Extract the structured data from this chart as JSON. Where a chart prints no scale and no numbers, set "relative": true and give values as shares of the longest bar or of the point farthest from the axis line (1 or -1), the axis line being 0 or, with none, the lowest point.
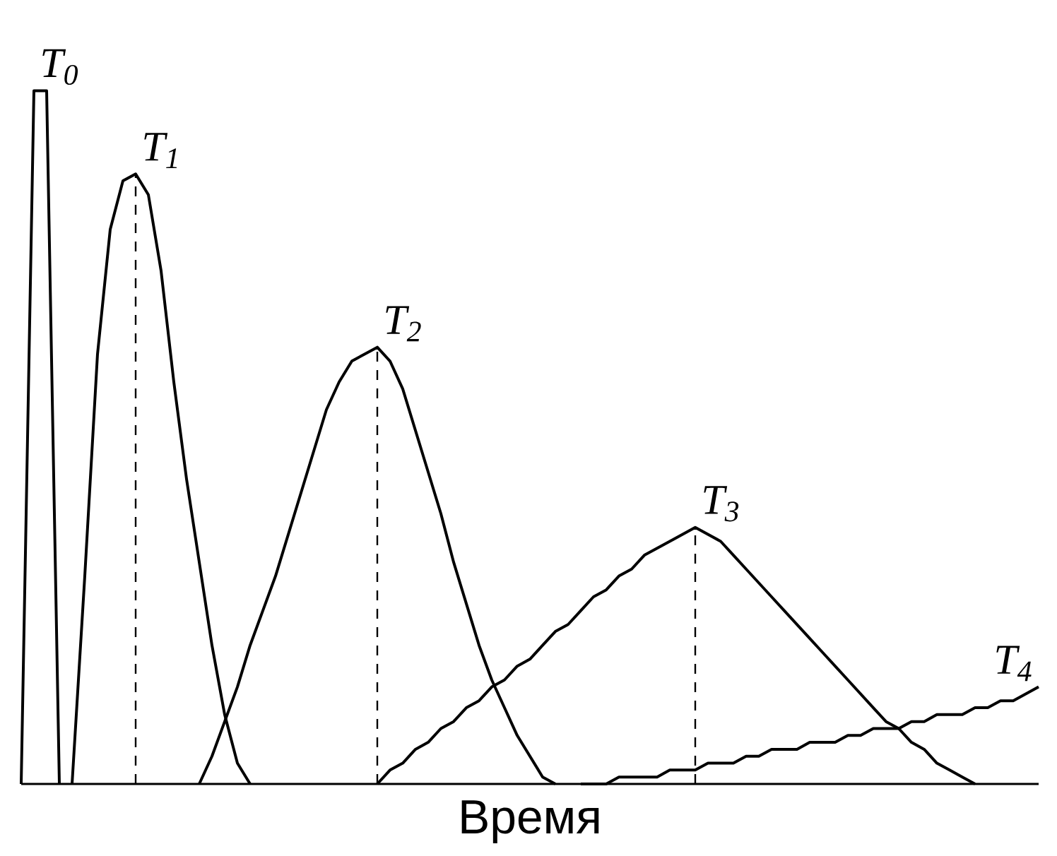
{
  "chart_data": {
    "type": "line",
    "xlabel": "Время",
    "relative": true,
    "tick_labels": false,
    "marker": "none",
    "categories": [
      null,
      null,
      null,
      null,
      null,
      null,
      null,
      null,
      null,
      null,
      null,
      null,
      null,
      null,
      null,
      null,
      null,
      null,
      null,
      null,
      null,
      null,
      null,
      null,
      null,
      null,
      null,
      null,
      null,
      null,
      null,
      null,
      null,
      null,
      null,
      null,
      null,
      null,
      null,
      null,
      null,
      null,
      null,
      null,
      null,
      null,
      null,
      null,
      null,
      null,
      null,
      null,
      null,
      null,
      null,
      null,
      null,
      null,
      null,
      null,
      null,
      null,
      null,
      null,
      null,
      null,
      null,
      null,
      null,
      null,
      null,
      null,
      null,
      null,
      null,
      null,
      null,
      null,
      null,
      null,
      null
    ],
    "series": [
      {
        "name": "T$_{0}$",
        "color": "#000000",
        "values": [
          0,
          1,
          1,
          0,
          null,
          null,
          null,
          null,
          null,
          null,
          null,
          null,
          null,
          null,
          null,
          null,
          null,
          null,
          null,
          null,
          null,
          null,
          null,
          null,
          null,
          null,
          null,
          null,
          null,
          null,
          null,
          null,
          null,
          null,
          null,
          null,
          null,
          null,
          null,
          null,
          null,
          null,
          null,
          null,
          null,
          null,
          null,
          null,
          null,
          null,
          null,
          null,
          null,
          null,
          null,
          null,
          null,
          null,
          null,
          null,
          null,
          null,
          null,
          null,
          null,
          null,
          null,
          null,
          null,
          null,
          null,
          null,
          null,
          null,
          null,
          null,
          null,
          null,
          null,
          null,
          null
        ]
      },
      {
        "name": "T$_{1}$",
        "color": "#000000",
        "values": [
          null,
          null,
          null,
          null,
          0,
          0.3,
          0.62,
          0.8,
          0.87,
          0.88,
          0.85,
          0.74,
          0.58,
          0.44,
          0.32,
          0.2,
          0.1,
          0.03,
          0,
          null,
          null,
          null,
          null,
          null,
          null,
          null,
          null,
          null,
          null,
          null,
          null,
          null,
          null,
          null,
          null,
          null,
          null,
          null,
          null,
          null,
          null,
          null,
          null,
          null,
          null,
          null,
          null,
          null,
          null,
          null,
          null,
          null,
          null,
          null,
          null,
          null,
          null,
          null,
          null,
          null,
          null,
          null,
          null,
          null,
          null,
          null,
          null,
          null,
          null,
          null,
          null,
          null,
          null,
          null,
          null,
          null,
          null,
          null,
          null,
          null,
          null
        ]
      },
      {
        "name": "T$_{2}$",
        "color": "#000000",
        "values": [
          null,
          null,
          null,
          null,
          null,
          null,
          null,
          null,
          null,
          null,
          null,
          null,
          null,
          null,
          0,
          0.04,
          0.09,
          0.14,
          0.2,
          0.25,
          0.3,
          0.36,
          0.42,
          0.48,
          0.54,
          0.58,
          0.61,
          0.62,
          0.63,
          0.61,
          0.57,
          0.51,
          0.45,
          0.39,
          0.32,
          0.26,
          0.2,
          0.15,
          0.11,
          0.07,
          0.04,
          0.01,
          0,
          null,
          null,
          null,
          null,
          null,
          null,
          null,
          null,
          null,
          null,
          null,
          null,
          null,
          null,
          null,
          null,
          null,
          null,
          null,
          null,
          null,
          null,
          null,
          null,
          null,
          null,
          null,
          null,
          null,
          null,
          null,
          null,
          null,
          null,
          null,
          null,
          null,
          null
        ]
      },
      {
        "name": "T$_{3}$",
        "color": "#000000",
        "values": [
          null,
          null,
          null,
          null,
          null,
          null,
          null,
          null,
          null,
          null,
          null,
          null,
          null,
          null,
          null,
          null,
          null,
          null,
          null,
          null,
          null,
          null,
          null,
          null,
          null,
          null,
          null,
          null,
          0,
          0.02,
          0.03,
          0.05,
          0.06,
          0.08,
          0.09,
          0.11,
          0.12,
          0.14,
          0.15,
          0.17,
          0.18,
          0.2,
          0.22,
          0.23,
          0.25,
          0.27,
          0.28,
          0.3,
          0.31,
          0.33,
          0.34,
          0.35,
          0.36,
          0.37,
          0.36,
          0.35,
          0.33,
          0.31,
          0.29,
          0.27,
          0.25,
          0.23,
          0.21,
          0.19,
          0.17,
          0.15,
          0.13,
          0.11,
          0.09,
          0.08,
          0.06,
          0.05,
          0.03,
          0.02,
          0.01,
          0,
          null,
          null,
          null,
          null,
          null
        ]
      },
      {
        "name": "T$_{4}$",
        "color": "#000000",
        "values": [
          null,
          null,
          null,
          null,
          null,
          null,
          null,
          null,
          null,
          null,
          null,
          null,
          null,
          null,
          null,
          null,
          null,
          null,
          null,
          null,
          null,
          null,
          null,
          null,
          null,
          null,
          null,
          null,
          null,
          null,
          null,
          null,
          null,
          null,
          null,
          null,
          null,
          null,
          null,
          null,
          null,
          null,
          null,
          null,
          0,
          0,
          0,
          0.01,
          0.01,
          0.01,
          0.01,
          0.02,
          0.02,
          0.02,
          0.03,
          0.03,
          0.03,
          0.04,
          0.04,
          0.05,
          0.05,
          0.05,
          0.06,
          0.06,
          0.06,
          0.07,
          0.07,
          0.08,
          0.08,
          0.08,
          0.09,
          0.09,
          0.1,
          0.1,
          0.1,
          0.11,
          0.11,
          0.12,
          0.12,
          0.13,
          0.14
        ]
      }
    ]
  }
}
